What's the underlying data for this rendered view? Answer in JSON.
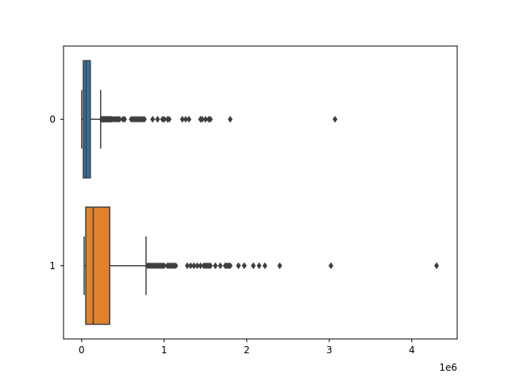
{
  "chart_data": {
    "type": "boxplot",
    "orientation": "horizontal",
    "title": "",
    "xlabel": "",
    "ylabel": "",
    "x_scale_label": "1e6",
    "xlim": [
      -0.22,
      4.55
    ],
    "x_ticks": [
      0,
      1,
      2,
      3,
      4
    ],
    "x_tick_labels": [
      "0",
      "1",
      "2",
      "3",
      "4"
    ],
    "categories": [
      "0",
      "1"
    ],
    "grid": false,
    "series": [
      {
        "category": "0",
        "color": "#3274a1",
        "min": 0.0,
        "q1": 0.02,
        "median": 0.055,
        "q3": 0.105,
        "whisker_low": 0.0,
        "whisker_high": 0.23,
        "outliers": [
          0.24,
          0.25,
          0.26,
          0.27,
          0.28,
          0.29,
          0.3,
          0.31,
          0.32,
          0.33,
          0.34,
          0.35,
          0.36,
          0.38,
          0.4,
          0.42,
          0.44,
          0.46,
          0.5,
          0.52,
          0.6,
          0.62,
          0.64,
          0.66,
          0.68,
          0.7,
          0.72,
          0.74,
          0.76,
          0.86,
          0.92,
          0.98,
          1.0,
          1.04,
          1.06,
          1.22,
          1.26,
          1.3,
          1.44,
          1.46,
          1.5,
          1.54,
          1.56,
          1.8,
          3.07
        ]
      },
      {
        "category": "1",
        "color": "#e1812c",
        "q1": 0.05,
        "median": 0.14,
        "q3": 0.34,
        "whisker_low": 0.03,
        "whisker_high": 0.78,
        "outliers": [
          0.8,
          0.82,
          0.84,
          0.86,
          0.88,
          0.9,
          0.92,
          0.94,
          0.96,
          0.98,
          1.0,
          1.04,
          1.06,
          1.08,
          1.1,
          1.12,
          1.14,
          1.28,
          1.32,
          1.36,
          1.4,
          1.44,
          1.48,
          1.5,
          1.52,
          1.54,
          1.56,
          1.62,
          1.68,
          1.74,
          1.76,
          1.78,
          1.8,
          1.9,
          1.97,
          2.08,
          2.15,
          2.22,
          2.4,
          3.02,
          4.3
        ]
      }
    ]
  }
}
